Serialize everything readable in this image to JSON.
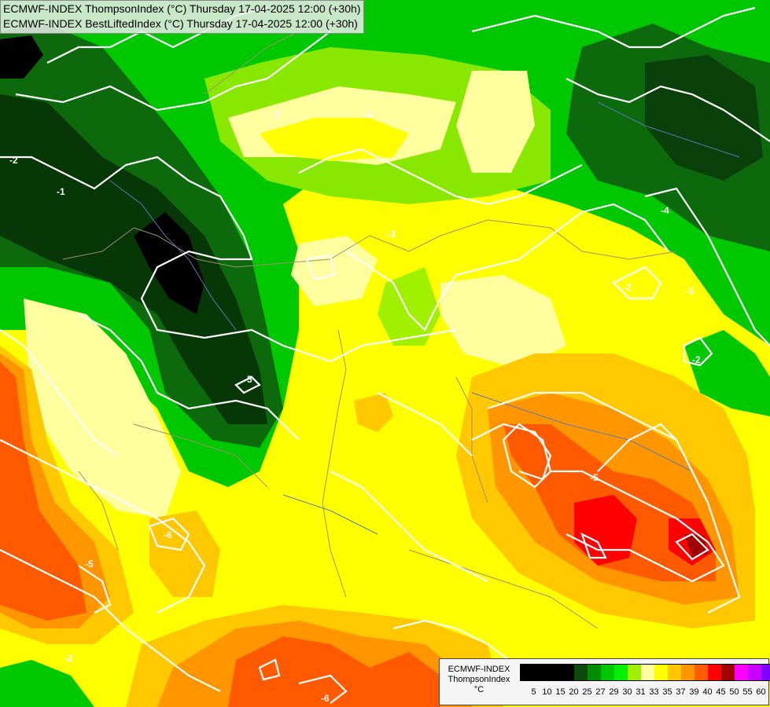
{
  "header": {
    "line1": "ECMWF-INDEX ThompsonIndex (°C) Thursday 17-04-2025 12:00 (+30h)",
    "line2": "ECMWF-INDEX BestLiftedIndex (°C) Thursday 17-04-2025 12:00 (+30h)"
  },
  "legend": {
    "model": "ECMWF-INDEX",
    "variable": "ThompsonIndex",
    "unit": "°C",
    "ticks": [
      "5",
      "10",
      "15",
      "20",
      "25",
      "27",
      "29",
      "30",
      "31",
      "33",
      "35",
      "37",
      "39",
      "40",
      "45",
      "50",
      "55",
      "60"
    ],
    "colors": [
      "#000000",
      "#000000",
      "#000000",
      "#000000",
      "#0c4a0c",
      "#008c00",
      "#00c800",
      "#00f000",
      "#a0f000",
      "#ffffa0",
      "#ffff00",
      "#ffc800",
      "#ff9600",
      "#ff5a00",
      "#ff0000",
      "#a00000",
      "#ff00ff",
      "#c800ff",
      "#8000ff",
      "#0000ff"
    ]
  },
  "contours": {
    "labels": [
      "-2",
      "-1",
      "-3",
      "-3",
      "-3",
      "-4",
      "-2",
      "-5",
      "-2",
      "-5",
      "-6",
      "-5",
      "-5",
      "-2",
      "-6"
    ]
  }
}
